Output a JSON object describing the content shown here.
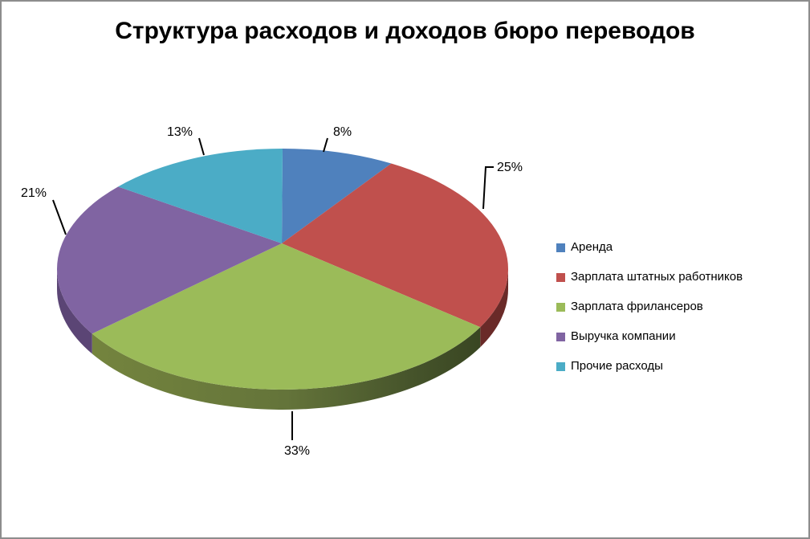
{
  "window": {
    "background": "#ffffff",
    "border_color": "#8d8d8d"
  },
  "title": "Структура расходов и доходов бюро переводов",
  "chart_data": {
    "type": "pie",
    "projection": "3d",
    "title": "Структура расходов и доходов бюро переводов",
    "legend_position": "right",
    "start_angle_deg": 0,
    "direction": "clockwise",
    "unit": "%",
    "label_color": "#000000",
    "leader_line_color": "#000000",
    "slices": [
      {
        "label": "Аренда",
        "value": 8,
        "display": "8%",
        "color": "#4F81BD",
        "side_color": "#35597F"
      },
      {
        "label": "Зарплата штатных работников",
        "value": 25,
        "display": "25%",
        "color": "#C0504D",
        "side_color": "#6A2A28"
      },
      {
        "label": "Зарплата фрилансеров",
        "value": 33,
        "display": "33%",
        "color": "#9BBB59",
        "side_color": "#5E6E36",
        "side_gradient": [
          {
            "offset": 0,
            "color": "#74843E"
          },
          {
            "offset": 0.5,
            "color": "#64743A"
          },
          {
            "offset": 0.82,
            "color": "#46542B"
          },
          {
            "offset": 1,
            "color": "#394622"
          }
        ]
      },
      {
        "label": "Выручка компании",
        "value": 21,
        "display": "21%",
        "color": "#8064A2",
        "side_color": "#5B4575"
      },
      {
        "label": "Прочие расходы",
        "value": 13,
        "display": "13%",
        "color": "#4BACC6",
        "side_color": "#2E7A91"
      }
    ]
  }
}
